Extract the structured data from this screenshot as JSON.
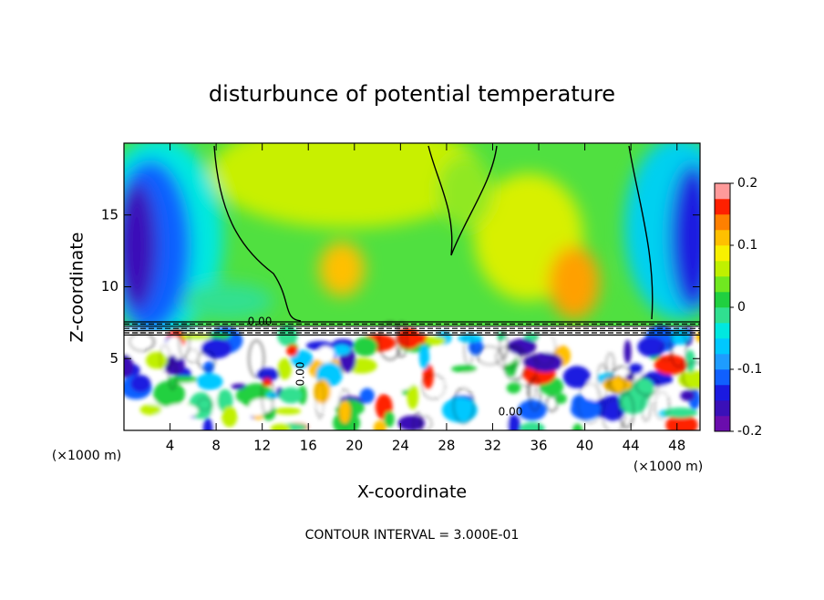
{
  "chart_data": {
    "type": "contour",
    "title": "disturbunce of potential temperature",
    "x_label": "X-coordinate",
    "y_label": "Z-coordinate",
    "x_unit_left": "(×1000 m)",
    "x_unit_right": "(×1000 m)",
    "footer": "CONTOUR INTERVAL = 3.000E-01",
    "contour_labels": [
      "0.00",
      "0.00",
      "0.00"
    ],
    "xlim": [
      0,
      50
    ],
    "xticks": [
      4,
      8,
      12,
      16,
      20,
      24,
      28,
      32,
      36,
      40,
      44,
      48
    ],
    "ylim": [
      0,
      20
    ],
    "yticks": [
      5,
      10,
      15
    ],
    "colorbar": {
      "lim": [
        -0.2,
        0.2
      ],
      "ticks": [
        -0.2,
        -0.1,
        0,
        0.1,
        0.2
      ],
      "colors": [
        "#6a0dad",
        "#3a10b8",
        "#1a1ae0",
        "#1060ff",
        "#1e9cff",
        "#00c8ff",
        "#00e8e0",
        "#30e090",
        "#20d040",
        "#70e820",
        "#c0f000",
        "#f8f000",
        "#ffc000",
        "#ff8000",
        "#ff2000",
        "#ff9a9a"
      ]
    }
  }
}
